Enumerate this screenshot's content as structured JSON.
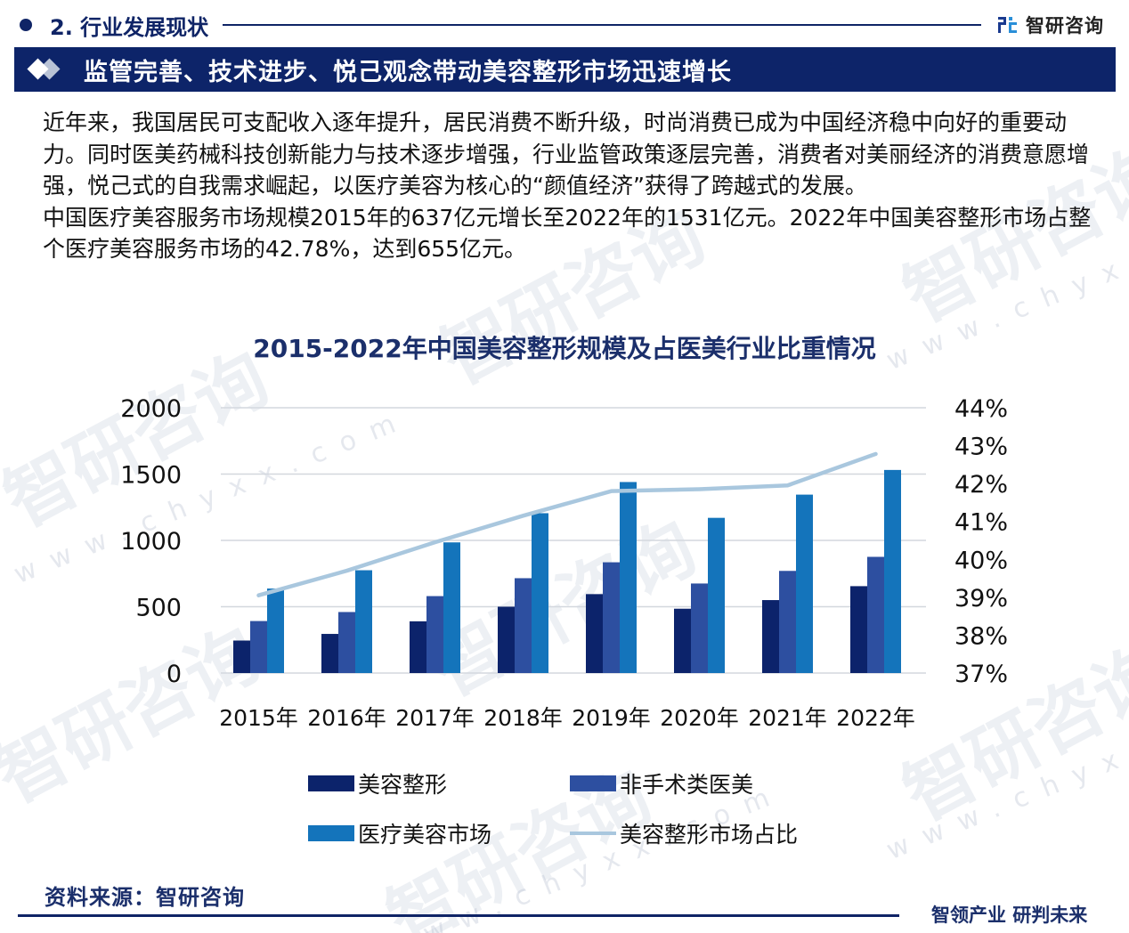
{
  "section": {
    "number_title": "2. 行业发展现状",
    "brand_name": "智研咨询"
  },
  "banner": {
    "title": "监管完善、技术进步、悦己观念带动美容整形市场迅速增长"
  },
  "paragraphs": [
    "近年来，我国居民可支配收入逐年提升，居民消费不断升级，时尚消费已成为中国经济稳中向好的重要动力。同时医美药械科技创新能力与技术逐步增强，行业监管政策逐层完善，消费者对美丽经济的消费意愿增强，悦己式的自我需求崛起，以医疗美容为核心的“颜值经济”获得了跨越式的发展。",
    "中国医疗美容服务市场规模2015年的637亿元增长至2022年的1531亿元。2022年中国美容整形市场占整个医疗美容服务市场的42.78%，达到655亿元。"
  ],
  "chart_data": {
    "type": "bar",
    "title": "2015-2022年中国美容整形规模及占医美行业比重情况",
    "categories": [
      "2015年",
      "2016年",
      "2017年",
      "2018年",
      "2019年",
      "2020年",
      "2021年",
      "2022年"
    ],
    "series": [
      {
        "name": "美容整形",
        "type": "bar",
        "axis": "left",
        "color": "#0c236b",
        "values": [
          245,
          295,
          390,
          500,
          595,
          485,
          550,
          655
        ]
      },
      {
        "name": "非手术类医美",
        "type": "bar",
        "axis": "left",
        "color": "#2d4fa0",
        "values": [
          392,
          460,
          580,
          715,
          835,
          675,
          770,
          876
        ]
      },
      {
        "name": "医疗美容市场",
        "type": "bar",
        "axis": "left",
        "color": "#1474bb",
        "values": [
          637,
          775,
          985,
          1205,
          1440,
          1170,
          1345,
          1531
        ]
      },
      {
        "name": "美容整形市场占比",
        "type": "line",
        "axis": "right",
        "color": "#a9c7de",
        "values": [
          39.05,
          39.7,
          40.45,
          41.15,
          41.8,
          41.85,
          41.95,
          42.78
        ]
      }
    ],
    "y_left": {
      "ticks": [
        "2000",
        "1500",
        "1000",
        "500",
        "0"
      ],
      "ylim": [
        0,
        2000
      ]
    },
    "y_right": {
      "ticks": [
        "44%",
        "43%",
        "42%",
        "41%",
        "40%",
        "39%",
        "38%",
        "37%"
      ],
      "ylim": [
        37,
        44
      ]
    },
    "xlabel": "",
    "ylabel": "",
    "grid": true,
    "legend_position": "bottom"
  },
  "legend": [
    {
      "label": "美容整形",
      "kind": "bar",
      "color": "#0c236b"
    },
    {
      "label": "非手术类医美",
      "kind": "bar",
      "color": "#2d4fa0"
    },
    {
      "label": "医疗美容市场",
      "kind": "bar",
      "color": "#1474bb"
    },
    {
      "label": "美容整形市场占比",
      "kind": "line",
      "color": "#a9c7de"
    }
  ],
  "footer": {
    "source": "资料来源：智研咨询",
    "slogan": "智领产业 研判未来"
  },
  "colors": {
    "navy": "#0d2469",
    "title_blue": "#1b2f6b"
  },
  "watermark": {
    "text": "智研咨询",
    "url_text": "www.chyxx.com"
  }
}
